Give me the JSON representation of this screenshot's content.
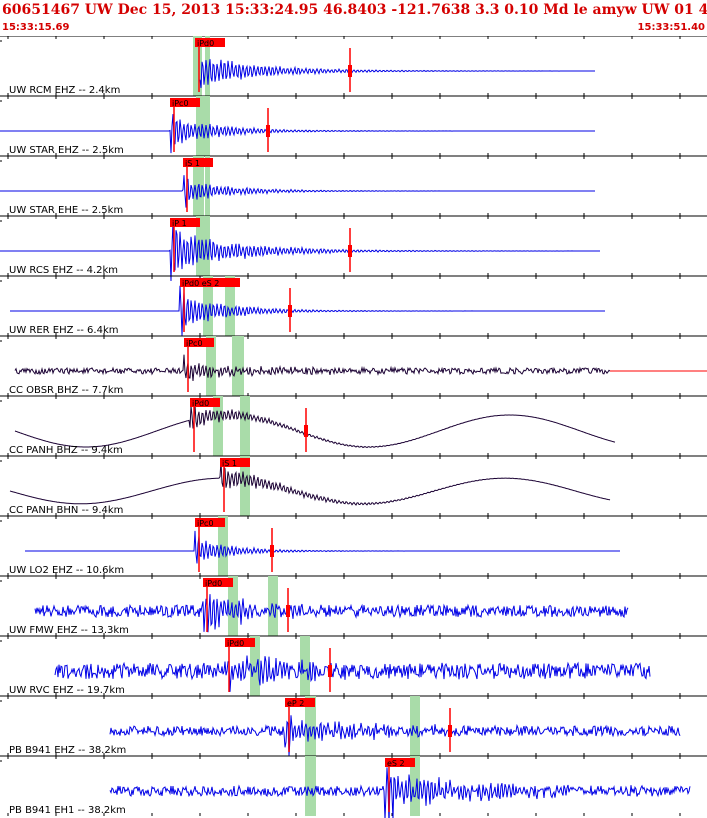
{
  "header": {
    "title": "60651467 UW Dec 15, 2013 15:33:24.95   46.8403 -121.7638  3.3 0.10 Md le amyw UW 01   4",
    "start_time": "15:33:15.69",
    "end_time": "15:33:51.40"
  },
  "colors": {
    "accent": "#d40000",
    "trace_blue": "#0000e6",
    "trace_dark": "#1a0033",
    "window_green": "#a9dca9",
    "pick_red": "#ff0000"
  },
  "traces": [
    {
      "label": "UW RCM EHZ -- 2.4km",
      "pick": "iPd0",
      "color": "blue"
    },
    {
      "label": "UW STAR EHZ -- 2.5km",
      "pick": "iPc0",
      "color": "blue"
    },
    {
      "label": "UW STAR EHE -- 2.5km",
      "pick": "iS 1",
      "color": "blue"
    },
    {
      "label": "UW RCS EHZ -- 4.2km",
      "pick": "iP 1",
      "color": "blue"
    },
    {
      "label": "UW RER EHZ -- 6.4km",
      "pick": "iPd0 eS 2",
      "color": "blue"
    },
    {
      "label": "CC OBSR BHZ -- 7.7km",
      "pick": "iPc0",
      "color": "dark"
    },
    {
      "label": "CC PANH BHZ -- 9.4km",
      "pick": "iPd0",
      "color": "dark"
    },
    {
      "label": "CC PANH BHN -- 9.4km",
      "pick": "iS 1",
      "color": "dark"
    },
    {
      "label": "UW LO2 EHZ -- 10.6km",
      "pick": "iPc0",
      "color": "blue"
    },
    {
      "label": "UW FMW EHZ -- 13.3km",
      "pick": "iPd0",
      "color": "blue"
    },
    {
      "label": "UW RVC EHZ -- 19.7km",
      "pick": "iPd0",
      "color": "blue"
    },
    {
      "label": "PB B941 EHZ -- 38.2km",
      "pick": "eP 2",
      "color": "blue"
    },
    {
      "label": "PB B941 EH1 -- 38.2km",
      "pick": "eS 2",
      "color": "blue"
    }
  ]
}
